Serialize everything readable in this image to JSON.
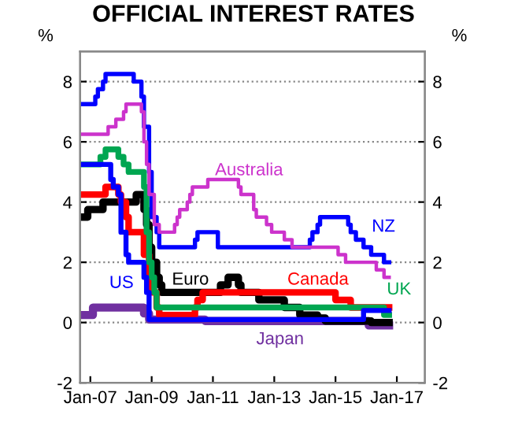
{
  "chart_data": {
    "type": "step",
    "title": "OFFICIAL INTEREST RATES",
    "ylabel": "%",
    "y2label": "%",
    "xlim": [
      "2006-09",
      "2017-12"
    ],
    "xticks": [
      {
        "value": "2007-01",
        "label": "Jan-07"
      },
      {
        "value": "2009-01",
        "label": "Jan-09"
      },
      {
        "value": "2011-01",
        "label": "Jan-11"
      },
      {
        "value": "2013-01",
        "label": "Jan-13"
      },
      {
        "value": "2015-01",
        "label": "Jan-15"
      },
      {
        "value": "2017-01",
        "label": "Jan-17"
      }
    ],
    "ylim": [
      -2,
      9
    ],
    "yticks": [
      -2,
      0,
      2,
      4,
      6,
      8
    ],
    "y2lim": [
      -2,
      9
    ],
    "y2ticks": [
      -2,
      0,
      2,
      4,
      6,
      8
    ],
    "grid": "y",
    "legend": false,
    "line_style": "solid",
    "marker": "none",
    "series": [
      {
        "name": "Australia",
        "color": "#cc33cc",
        "x": [
          "2006-09",
          "2007-08",
          "2007-11",
          "2008-02",
          "2008-03",
          "2008-09",
          "2008-10",
          "2008-11",
          "2008-12",
          "2009-02",
          "2009-04",
          "2009-10",
          "2009-11",
          "2009-12",
          "2010-03",
          "2010-04",
          "2010-05",
          "2010-11",
          "2011-11",
          "2011-12",
          "2012-05",
          "2012-06",
          "2012-10",
          "2012-12",
          "2013-05",
          "2013-08",
          "2015-02",
          "2015-05",
          "2016-05",
          "2016-08",
          "2016-10"
        ],
        "values": [
          6.25,
          6.5,
          6.75,
          7.0,
          7.25,
          7.0,
          6.0,
          5.25,
          4.25,
          3.25,
          3.0,
          3.25,
          3.5,
          3.75,
          4.0,
          4.25,
          4.5,
          4.75,
          4.5,
          4.25,
          3.75,
          3.5,
          3.25,
          3.0,
          2.75,
          2.5,
          2.25,
          2.0,
          1.75,
          1.5,
          1.5
        ]
      },
      {
        "name": "NZ",
        "color": "#0000ff",
        "x": [
          "2006-09",
          "2007-03",
          "2007-04",
          "2007-06",
          "2007-07",
          "2008-06",
          "2008-09",
          "2008-10",
          "2008-12",
          "2009-01",
          "2009-03",
          "2009-04",
          "2010-06",
          "2010-07",
          "2011-03",
          "2014-03",
          "2014-04",
          "2014-06",
          "2014-07",
          "2015-06",
          "2015-07",
          "2015-09",
          "2015-12",
          "2016-03",
          "2016-08",
          "2016-10"
        ],
        "values": [
          7.25,
          7.5,
          7.75,
          8.0,
          8.25,
          8.0,
          7.5,
          6.5,
          5.0,
          3.5,
          3.0,
          2.5,
          2.75,
          3.0,
          2.5,
          2.75,
          3.0,
          3.25,
          3.5,
          3.25,
          3.0,
          2.75,
          2.5,
          2.25,
          2.0,
          2.0
        ]
      },
      {
        "name": "US",
        "color": "#0000ff",
        "x": [
          "2006-09",
          "2007-09",
          "2007-10",
          "2007-12",
          "2008-01",
          "2008-03",
          "2008-04",
          "2008-10",
          "2008-11",
          "2008-12",
          "2015-12",
          "2016-10"
        ],
        "values": [
          5.25,
          4.75,
          4.5,
          4.25,
          3.0,
          2.25,
          2.0,
          1.5,
          1.0,
          0.1,
          0.4,
          0.4
        ]
      },
      {
        "name": "UK",
        "color": "#00a651",
        "x": [
          "2006-09",
          "2007-01",
          "2007-05",
          "2007-07",
          "2007-12",
          "2008-02",
          "2008-04",
          "2008-10",
          "2008-11",
          "2008-12",
          "2009-01",
          "2009-02",
          "2009-03",
          "2016-08",
          "2016-10"
        ],
        "values": [
          5.25,
          5.25,
          5.5,
          5.75,
          5.5,
          5.25,
          5.0,
          4.5,
          3.0,
          2.0,
          1.5,
          1.0,
          0.5,
          0.25,
          0.25
        ]
      },
      {
        "name": "Canada",
        "color": "#ff0000",
        "x": [
          "2006-09",
          "2007-07",
          "2007-12",
          "2008-01",
          "2008-03",
          "2008-04",
          "2008-10",
          "2008-12",
          "2009-01",
          "2009-03",
          "2009-04",
          "2010-06",
          "2010-07",
          "2010-09",
          "2015-01",
          "2015-07",
          "2016-10"
        ],
        "values": [
          4.25,
          4.5,
          4.25,
          4.0,
          3.5,
          3.0,
          2.25,
          1.5,
          1.0,
          0.5,
          0.25,
          0.5,
          0.75,
          1.0,
          0.75,
          0.5,
          0.5
        ]
      },
      {
        "name": "Euro",
        "color": "#000000",
        "x": [
          "2006-09",
          "2006-10",
          "2006-12",
          "2007-03",
          "2007-06",
          "2008-07",
          "2008-10",
          "2008-11",
          "2008-12",
          "2009-01",
          "2009-03",
          "2009-04",
          "2009-05",
          "2011-04",
          "2011-07",
          "2011-11",
          "2011-12",
          "2012-07",
          "2013-05",
          "2013-11",
          "2014-06",
          "2014-09",
          "2016-03",
          "2016-10"
        ],
        "values": [
          3.5,
          3.5,
          3.75,
          3.75,
          4.0,
          4.25,
          3.75,
          3.25,
          2.5,
          2.0,
          1.5,
          1.25,
          1.0,
          1.25,
          1.5,
          1.25,
          1.0,
          0.75,
          0.5,
          0.25,
          0.15,
          0.05,
          0.0,
          0.0
        ]
      },
      {
        "name": "Japan",
        "color": "#7030a0",
        "x": [
          "2006-09",
          "2007-02",
          "2008-10",
          "2008-12",
          "2010-10",
          "2016-02",
          "2016-10"
        ],
        "values": [
          0.25,
          0.5,
          0.3,
          0.1,
          0.05,
          -0.1,
          -0.1
        ]
      }
    ]
  }
}
